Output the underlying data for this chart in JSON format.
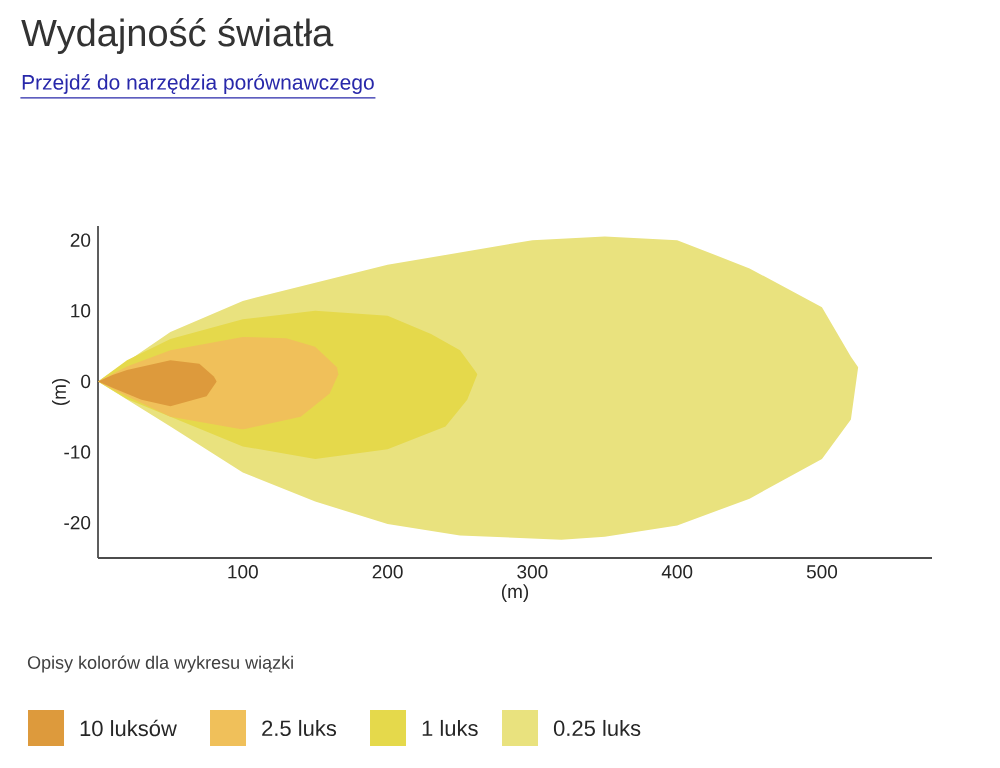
{
  "chart_data": {
    "type": "area",
    "title": "Wydajność światła",
    "subtitle": "Przejdź do narzędzia porównawczego",
    "xlabel": "(m)",
    "ylabel": "(m)",
    "legend_title": "Opisy kolorów dla wykresu wiązki",
    "legend": "bottom",
    "xlim": [
      0,
      576
    ],
    "ylim": [
      -25,
      22
    ],
    "xticks": [
      100,
      200,
      300,
      400,
      500
    ],
    "yticks": [
      -20,
      -10,
      0,
      10,
      20
    ],
    "series": [
      {
        "name": "10 luksów",
        "color": "#dd9a3c",
        "x": [
          0,
          10,
          20,
          50,
          70,
          80,
          82,
          75,
          50,
          30,
          10,
          0
        ],
        "values": [
          0,
          0.9,
          1.6,
          3,
          2.5,
          0.7,
          0,
          -2.1,
          -3.5,
          -2.6,
          -0.9,
          0
        ]
      },
      {
        "name": "2.5 luks",
        "color": "#f0c05a",
        "x": [
          0,
          20,
          50,
          100,
          130,
          150,
          165,
          166,
          160,
          140,
          100,
          50,
          20,
          0
        ],
        "values": [
          0,
          2.1,
          4.4,
          6.3,
          6.1,
          4.9,
          2,
          1,
          -1.7,
          -5,
          -6.8,
          -5,
          -2.1,
          0
        ]
      },
      {
        "name": "1 luks",
        "color": "#e5d94b",
        "x": [
          0,
          20,
          50,
          100,
          150,
          200,
          230,
          250,
          260,
          262,
          255,
          240,
          200,
          150,
          100,
          50,
          20,
          0
        ],
        "values": [
          0,
          3,
          6,
          8.8,
          10,
          9.3,
          6.7,
          4.4,
          1.6,
          1,
          -2.6,
          -6.4,
          -9.6,
          -11,
          -9.2,
          -5,
          -2.5,
          0
        ]
      },
      {
        "name": "0.25 luks",
        "color": "#e9e27e",
        "x": [
          0,
          50,
          100,
          200,
          300,
          350,
          400,
          450,
          500,
          520,
          525,
          520,
          500,
          450,
          400,
          350,
          320,
          250,
          200,
          150,
          100,
          50,
          0
        ],
        "values": [
          0,
          7,
          11.4,
          16.5,
          20,
          20.5,
          20,
          16,
          10.5,
          3.5,
          2,
          -5.4,
          -11,
          -16.6,
          -20.4,
          -22,
          -22.4,
          -21.8,
          -20.2,
          -17,
          -12.9,
          -6.4,
          0
        ]
      }
    ]
  }
}
